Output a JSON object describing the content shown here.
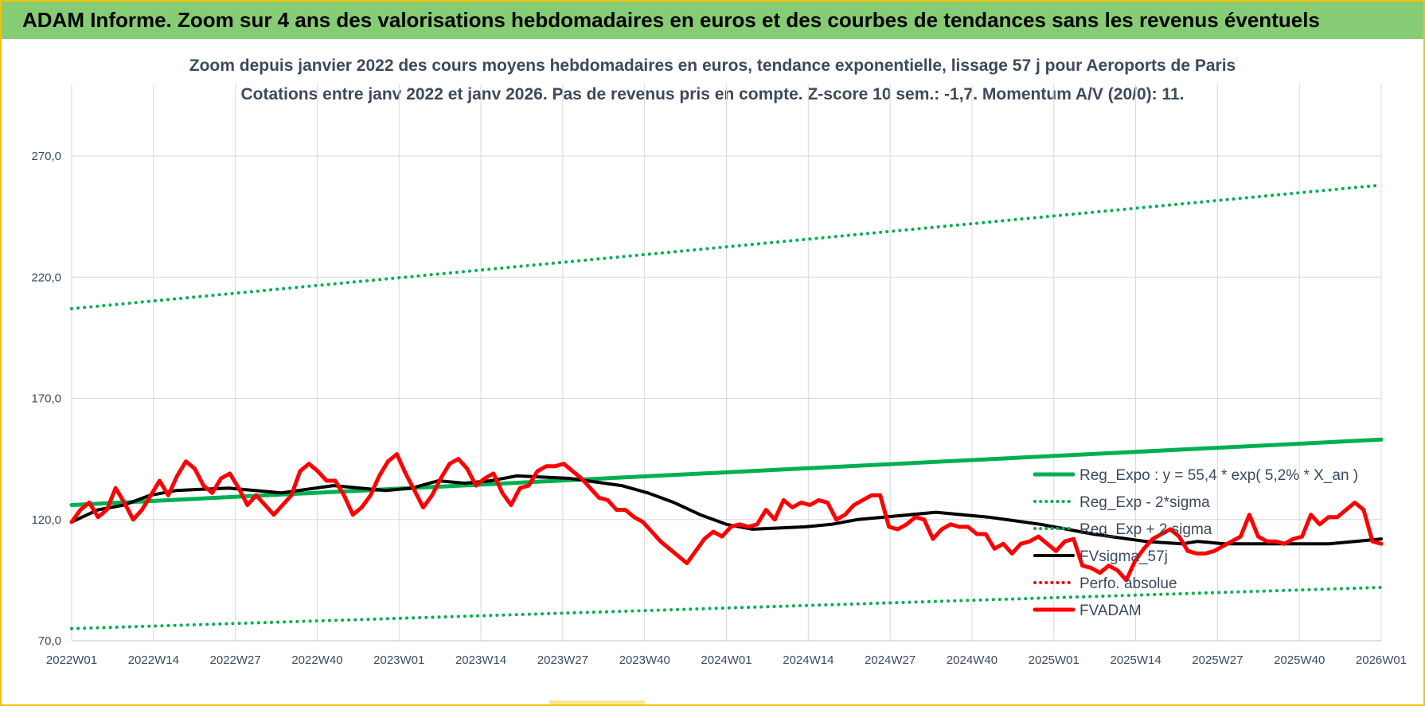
{
  "header": {
    "banner_title": "ADAM Informe. Zoom sur 4 ans des valorisations hebdomadaires en euros et des courbes de tendances sans les revenus éventuels"
  },
  "chart_data": {
    "type": "line",
    "title": "Zoom depuis janvier 2022 des cours moyens hebdomadaires en euros, tendance exponentielle, lissage 57 j pour Aeroports de Paris",
    "subtitle": "Cotations entre janv 2022 et janv 2026. Pas de revenus pris en compte. Z-score 10 sem.: -1,7. Momentum A/V (20/0): 11.",
    "xlabel": "",
    "ylabel": "",
    "ylim": [
      70,
      270
    ],
    "yticks": [
      "70,0",
      "120,0",
      "170,0",
      "220,0",
      "270,0"
    ],
    "ytick_values": [
      70,
      120,
      170,
      220,
      270
    ],
    "xticks": [
      "2022W01",
      "2022W14",
      "2022W27",
      "2022W40",
      "2023W01",
      "2023W14",
      "2023W27",
      "2023W40",
      "2024W01",
      "2024W14",
      "2024W27",
      "2024W40",
      "2025W01",
      "2025W14",
      "2025W27",
      "2025W40",
      "2026W01"
    ],
    "grid": true,
    "legend_position": "right",
    "colors": {
      "green": "#00b050",
      "red": "#ff0000",
      "black": "#000000",
      "grid": "#d9d9d9"
    },
    "series": [
      {
        "name": "Reg_Expo : y = 55,4 * exp( 5,2% *  X_an )",
        "style": "solid",
        "color": "#00b050",
        "points": [
          [
            0,
            126
          ],
          [
            208,
            153
          ]
        ]
      },
      {
        "name": "Reg_Exp - 2*sigma",
        "style": "dotted",
        "color": "#00b050",
        "points": [
          [
            0,
            75
          ],
          [
            208,
            92
          ]
        ]
      },
      {
        "name": "Reg_Exp + 2 sigma",
        "style": "dotted",
        "color": "#00b050",
        "points": [
          [
            0,
            207
          ],
          [
            208,
            258
          ]
        ]
      },
      {
        "name": "FVsigma_57j",
        "style": "solid",
        "color": "#000000",
        "points": [
          [
            0,
            119
          ],
          [
            5,
            124
          ],
          [
            10,
            126
          ],
          [
            15,
            130
          ],
          [
            20,
            132
          ],
          [
            30,
            133
          ],
          [
            40,
            131
          ],
          [
            50,
            134
          ],
          [
            60,
            132
          ],
          [
            65,
            133
          ],
          [
            70,
            136
          ],
          [
            75,
            135
          ],
          [
            80,
            136
          ],
          [
            85,
            138
          ],
          [
            95,
            137
          ],
          [
            105,
            134
          ],
          [
            110,
            131
          ],
          [
            115,
            127
          ],
          [
            120,
            122
          ],
          [
            125,
            118
          ],
          [
            130,
            116
          ],
          [
            140,
            117
          ],
          [
            145,
            118
          ],
          [
            150,
            120
          ],
          [
            155,
            121
          ],
          [
            160,
            122
          ],
          [
            165,
            123
          ],
          [
            175,
            121
          ],
          [
            185,
            118
          ],
          [
            195,
            114
          ],
          [
            205,
            111
          ],
          [
            212,
            110
          ],
          [
            215,
            111
          ],
          [
            220,
            110
          ],
          [
            230,
            110
          ],
          [
            240,
            110
          ],
          [
            245,
            111
          ],
          [
            250,
            112
          ]
        ]
      },
      {
        "name": "Perfo. absolue",
        "style": "dotted",
        "color": "#ff0000",
        "points": []
      },
      {
        "name": "FVADAM",
        "style": "solid",
        "color": "#ff0000",
        "points": [
          [
            0,
            119
          ],
          [
            2,
            124
          ],
          [
            4,
            127
          ],
          [
            6,
            121
          ],
          [
            8,
            124
          ],
          [
            10,
            133
          ],
          [
            12,
            127
          ],
          [
            14,
            120
          ],
          [
            16,
            124
          ],
          [
            18,
            130
          ],
          [
            20,
            136
          ],
          [
            22,
            130
          ],
          [
            24,
            138
          ],
          [
            26,
            144
          ],
          [
            28,
            141
          ],
          [
            30,
            134
          ],
          [
            32,
            131
          ],
          [
            34,
            137
          ],
          [
            36,
            139
          ],
          [
            38,
            133
          ],
          [
            40,
            126
          ],
          [
            42,
            130
          ],
          [
            44,
            126
          ],
          [
            46,
            122
          ],
          [
            48,
            126
          ],
          [
            50,
            130
          ],
          [
            52,
            140
          ],
          [
            54,
            143
          ],
          [
            56,
            140
          ],
          [
            58,
            136
          ],
          [
            60,
            136
          ],
          [
            62,
            130
          ],
          [
            64,
            122
          ],
          [
            66,
            125
          ],
          [
            68,
            130
          ],
          [
            70,
            138
          ],
          [
            72,
            144
          ],
          [
            74,
            147
          ],
          [
            76,
            139
          ],
          [
            78,
            132
          ],
          [
            80,
            125
          ],
          [
            82,
            130
          ],
          [
            84,
            137
          ],
          [
            86,
            143
          ],
          [
            88,
            145
          ],
          [
            90,
            141
          ],
          [
            92,
            134
          ],
          [
            94,
            137
          ],
          [
            96,
            139
          ],
          [
            98,
            131
          ],
          [
            100,
            126
          ],
          [
            102,
            133
          ],
          [
            104,
            134
          ],
          [
            106,
            140
          ],
          [
            108,
            142
          ],
          [
            110,
            142
          ],
          [
            112,
            143
          ],
          [
            114,
            140
          ],
          [
            116,
            137
          ],
          [
            118,
            133
          ],
          [
            120,
            129
          ],
          [
            122,
            128
          ],
          [
            124,
            124
          ],
          [
            126,
            124
          ],
          [
            128,
            121
          ],
          [
            130,
            119
          ],
          [
            132,
            115
          ],
          [
            134,
            111
          ],
          [
            136,
            108
          ],
          [
            138,
            105
          ],
          [
            140,
            102
          ],
          [
            142,
            107
          ],
          [
            144,
            112
          ],
          [
            146,
            115
          ],
          [
            148,
            113
          ],
          [
            150,
            117
          ],
          [
            152,
            118
          ],
          [
            154,
            117
          ],
          [
            156,
            118
          ],
          [
            158,
            124
          ],
          [
            160,
            120
          ],
          [
            162,
            128
          ],
          [
            164,
            125
          ],
          [
            166,
            127
          ],
          [
            168,
            126
          ],
          [
            170,
            128
          ],
          [
            172,
            127
          ],
          [
            174,
            120
          ],
          [
            176,
            122
          ],
          [
            178,
            126
          ],
          [
            180,
            128
          ],
          [
            182,
            130
          ],
          [
            184,
            130
          ],
          [
            186,
            117
          ],
          [
            188,
            116
          ],
          [
            190,
            118
          ],
          [
            192,
            121
          ],
          [
            194,
            120
          ],
          [
            196,
            112
          ],
          [
            198,
            116
          ],
          [
            200,
            118
          ],
          [
            202,
            117
          ],
          [
            204,
            117
          ],
          [
            206,
            114
          ],
          [
            208,
            114
          ],
          [
            210,
            108
          ],
          [
            212,
            110
          ],
          [
            214,
            106
          ],
          [
            216,
            110
          ],
          [
            218,
            111
          ],
          [
            220,
            113
          ],
          [
            222,
            110
          ],
          [
            224,
            107
          ],
          [
            226,
            111
          ],
          [
            228,
            112
          ],
          [
            230,
            101
          ],
          [
            232,
            100
          ],
          [
            234,
            98
          ],
          [
            236,
            101
          ],
          [
            238,
            99
          ],
          [
            240,
            95
          ],
          [
            242,
            103
          ],
          [
            244,
            108
          ],
          [
            246,
            112
          ],
          [
            248,
            114
          ],
          [
            250,
            116
          ],
          [
            252,
            113
          ],
          [
            254,
            107
          ],
          [
            256,
            106
          ],
          [
            258,
            106
          ],
          [
            260,
            107
          ],
          [
            262,
            109
          ],
          [
            264,
            111
          ],
          [
            266,
            113
          ],
          [
            268,
            122
          ],
          [
            270,
            113
          ],
          [
            272,
            111
          ],
          [
            274,
            111
          ],
          [
            276,
            110
          ],
          [
            278,
            112
          ],
          [
            280,
            113
          ],
          [
            282,
            122
          ],
          [
            284,
            118
          ],
          [
            286,
            121
          ],
          [
            288,
            121
          ],
          [
            290,
            124
          ],
          [
            292,
            127
          ],
          [
            294,
            124
          ],
          [
            296,
            111
          ],
          [
            298,
            110
          ]
        ]
      }
    ]
  }
}
